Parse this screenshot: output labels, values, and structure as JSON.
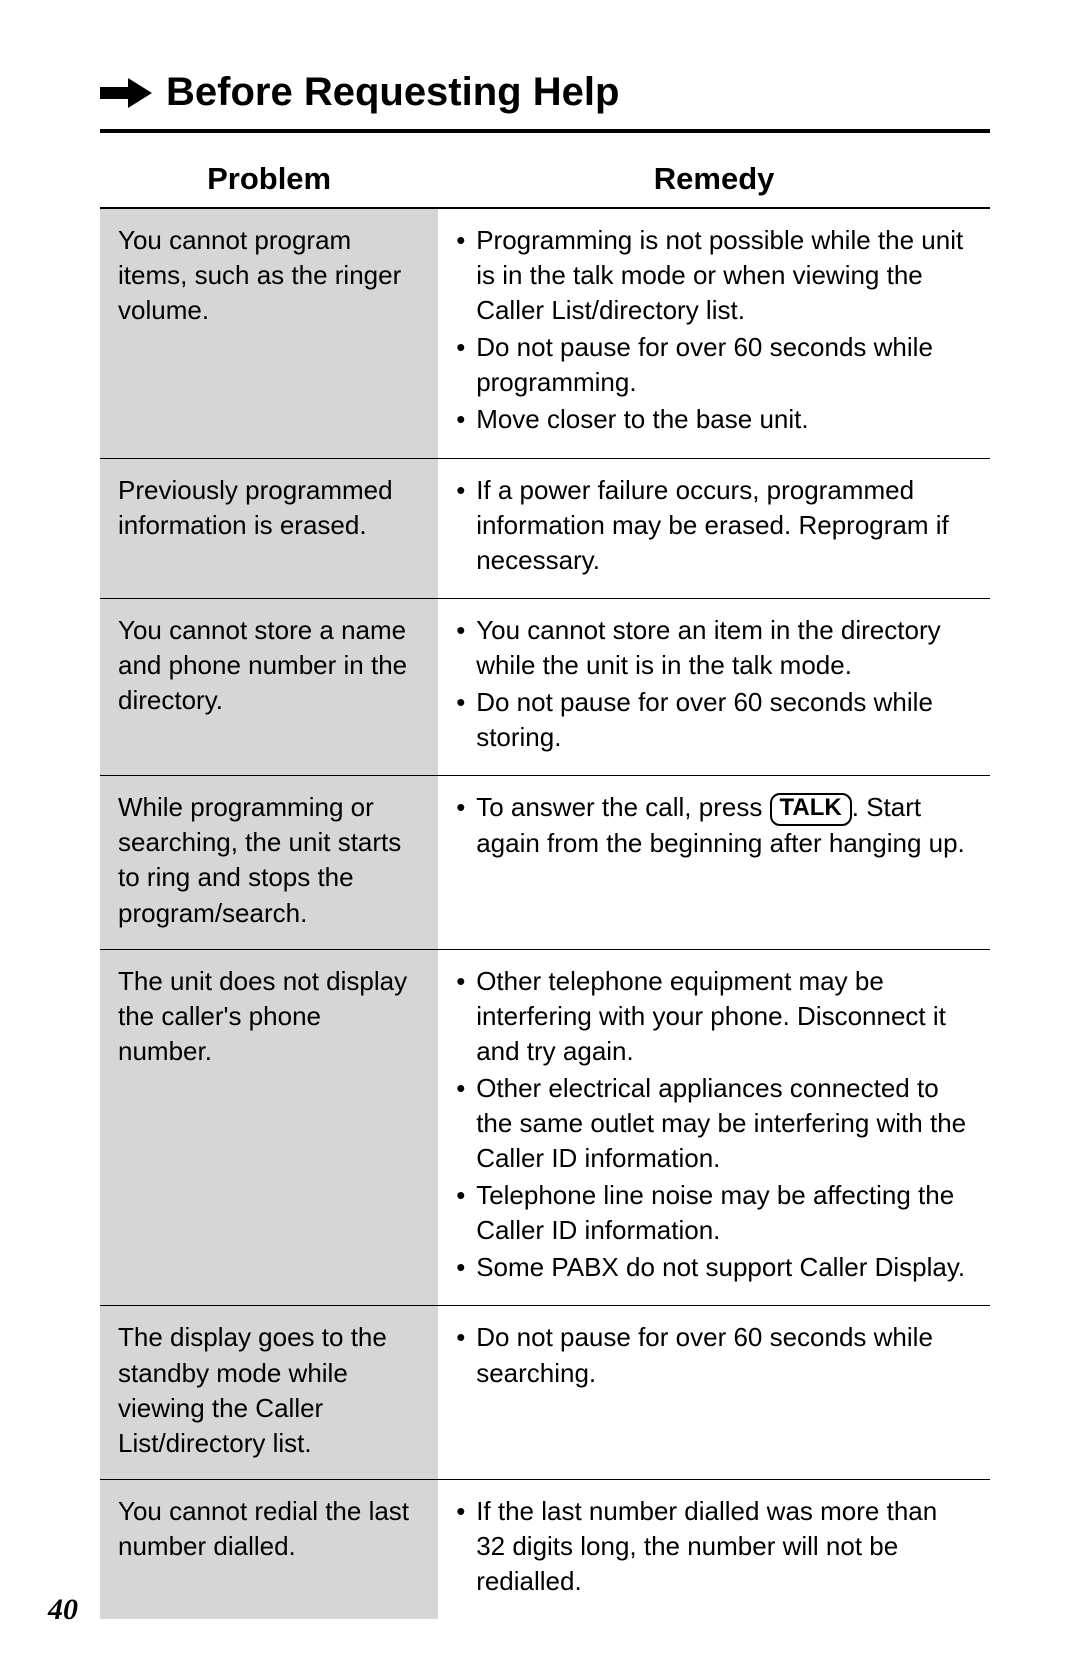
{
  "section_title": "Before Requesting Help",
  "page_number": "40",
  "columns": {
    "problem": "Problem",
    "remedy": "Remedy"
  },
  "talk_label": "TALK",
  "colors": {
    "background": "#ffffff",
    "problem_bg": "#d6d6d6",
    "rule": "#000000",
    "text": "#000000"
  },
  "rows": [
    {
      "problem": "You cannot program items, such as the ringer volume.",
      "remedies": [
        {
          "text": "Programming is not possible while the unit is in the talk mode or when viewing the Caller List/directory list."
        },
        {
          "text": "Do not pause for over 60 seconds while programming."
        },
        {
          "text": "Move closer to the base unit."
        }
      ]
    },
    {
      "problem": "Previously programmed information is erased.",
      "remedies": [
        {
          "text": "If a power failure occurs, programmed information may be erased. Reprogram if necessary."
        }
      ]
    },
    {
      "problem": "You cannot store a name and phone number in the directory.",
      "remedies": [
        {
          "text": "You cannot store an item in the directory while the unit is in the talk mode."
        },
        {
          "text": "Do not pause for over 60 seconds while storing."
        }
      ]
    },
    {
      "problem": "While programming or searching, the unit starts to ring and stops the program/search.",
      "remedies": [
        {
          "pre": "To answer the call, press ",
          "key": true,
          "post": ". Start again from the beginning after hanging up."
        }
      ]
    },
    {
      "problem": "The unit does not display the caller's phone number.",
      "remedies": [
        {
          "text": "Other telephone equipment may be interfering with your phone. Disconnect it and try again."
        },
        {
          "text": "Other electrical appliances connected to the same outlet may be interfering with the Caller ID information."
        },
        {
          "text": "Telephone line noise may be affecting the Caller ID information."
        },
        {
          "text": "Some PABX do not support Caller Display."
        }
      ]
    },
    {
      "problem": "The display goes to the standby mode while viewing the Caller List/directory list.",
      "remedies": [
        {
          "text": "Do not pause for over 60 seconds while searching."
        }
      ]
    },
    {
      "problem": "You cannot redial the last number dialled.",
      "remedies": [
        {
          "text": "If the last number dialled was more than 32 digits long, the number will not be redialled."
        }
      ]
    }
  ]
}
